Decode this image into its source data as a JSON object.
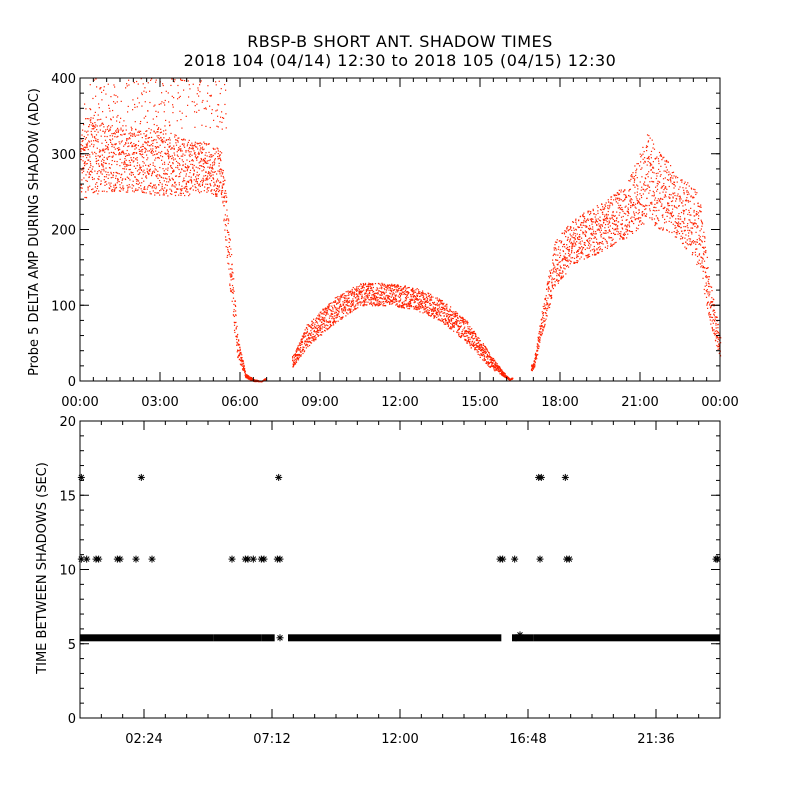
{
  "title_line1": "RBSP-B SHORT ANT. SHADOW TIMES",
  "title_line2": "2018 104 (04/14) 12:30 to 2018 105 (04/15) 12:30",
  "colors": {
    "points": "#ff2200",
    "markers": "#000000",
    "axes": "#000000",
    "background": "#ffffff"
  },
  "chart_data": [
    {
      "type": "scatter",
      "title": "",
      "ylabel": "Probe 5 DELTA AMP DURING SHADOW (ADC)",
      "xlabel": "",
      "xunit": "hours",
      "xlim": [
        0,
        24
      ],
      "ylim": [
        0,
        400
      ],
      "x_ticks": [
        0,
        3,
        6,
        9,
        12,
        15,
        18,
        21,
        24
      ],
      "x_tick_labels": [
        "00:00",
        "03:00",
        "06:00",
        "09:00",
        "12:00",
        "15:00",
        "18:00",
        "21:00",
        "00:00"
      ],
      "y_ticks": [
        0,
        100,
        200,
        300,
        400
      ],
      "y_tick_labels": [
        "0",
        "100",
        "200",
        "300",
        "400"
      ],
      "color": "#ff2200",
      "envelope": {
        "x": [
          0.0,
          0.5,
          1.0,
          2.0,
          3.0,
          4.0,
          4.8,
          5.3,
          5.6,
          5.9,
          6.2,
          6.5,
          6.8,
          8.0,
          8.5,
          9.5,
          10.5,
          11.5,
          12.5,
          13.5,
          14.5,
          15.3,
          15.8,
          16.1,
          17.0,
          17.3,
          17.8,
          18.5,
          19.5,
          20.5,
          21.3,
          21.8,
          22.5,
          23.2,
          23.6,
          24.0
        ],
        "lower": [
          240,
          245,
          250,
          250,
          245,
          245,
          250,
          240,
          120,
          30,
          5,
          0,
          0,
          20,
          45,
          75,
          100,
          100,
          95,
          80,
          50,
          20,
          8,
          2,
          15,
          60,
          125,
          155,
          170,
          190,
          210,
          200,
          185,
          150,
          80,
          30
        ],
        "upper": [
          330,
          360,
          340,
          330,
          335,
          320,
          315,
          305,
          200,
          60,
          10,
          3,
          0,
          35,
          75,
          110,
          130,
          130,
          125,
          110,
          80,
          40,
          15,
          3,
          25,
          90,
          185,
          215,
          235,
          260,
          330,
          300,
          270,
          250,
          140,
          60
        ],
        "sparse_upper": {
          "x_range": [
            0.1,
            5.5
          ],
          "min": 330,
          "max": 400
        }
      }
    },
    {
      "type": "scatter",
      "title": "",
      "ylabel": "TIME BETWEEN SHADOWS (SEC)",
      "xlabel": "",
      "xunit": "hours",
      "xlim": [
        0,
        24
      ],
      "ylim": [
        0,
        20
      ],
      "x_ticks": [
        2.4,
        7.2,
        12.0,
        16.8,
        21.6
      ],
      "x_tick_labels": [
        "02:24",
        "07:12",
        "12:00",
        "16:48",
        "21:36"
      ],
      "y_ticks": [
        0,
        5,
        10,
        15,
        20
      ],
      "y_tick_labels": [
        "0",
        "5",
        "10",
        "15",
        "20"
      ],
      "marker": "asterisk",
      "color": "#000000",
      "baseline": {
        "y": 5.4,
        "x_ranges": [
          [
            0,
            5.0
          ],
          [
            5.0,
            6.8
          ],
          [
            6.8,
            7.3
          ],
          [
            7.8,
            15.8
          ],
          [
            16.2,
            17.0
          ],
          [
            17.0,
            24
          ]
        ]
      },
      "points": [
        [
          0.05,
          16.2
        ],
        [
          0.05,
          10.7
        ],
        [
          0.25,
          10.7
        ],
        [
          0.6,
          10.7
        ],
        [
          0.7,
          10.7
        ],
        [
          1.4,
          10.7
        ],
        [
          1.5,
          10.7
        ],
        [
          2.1,
          10.7
        ],
        [
          2.3,
          16.2
        ],
        [
          2.7,
          10.7
        ],
        [
          5.7,
          10.7
        ],
        [
          6.2,
          10.7
        ],
        [
          6.3,
          10.7
        ],
        [
          6.5,
          10.7
        ],
        [
          6.8,
          10.7
        ],
        [
          6.9,
          10.7
        ],
        [
          7.4,
          10.7
        ],
        [
          7.5,
          10.7
        ],
        [
          7.45,
          16.2
        ],
        [
          7.5,
          5.4
        ],
        [
          15.75,
          10.7
        ],
        [
          15.85,
          10.7
        ],
        [
          16.3,
          10.7
        ],
        [
          16.35,
          5.4
        ],
        [
          16.5,
          5.6
        ],
        [
          17.2,
          16.2
        ],
        [
          17.3,
          16.2
        ],
        [
          17.25,
          10.7
        ],
        [
          18.2,
          16.2
        ],
        [
          18.25,
          10.7
        ],
        [
          18.35,
          10.7
        ],
        [
          23.85,
          10.7
        ],
        [
          23.9,
          10.7
        ]
      ]
    }
  ]
}
